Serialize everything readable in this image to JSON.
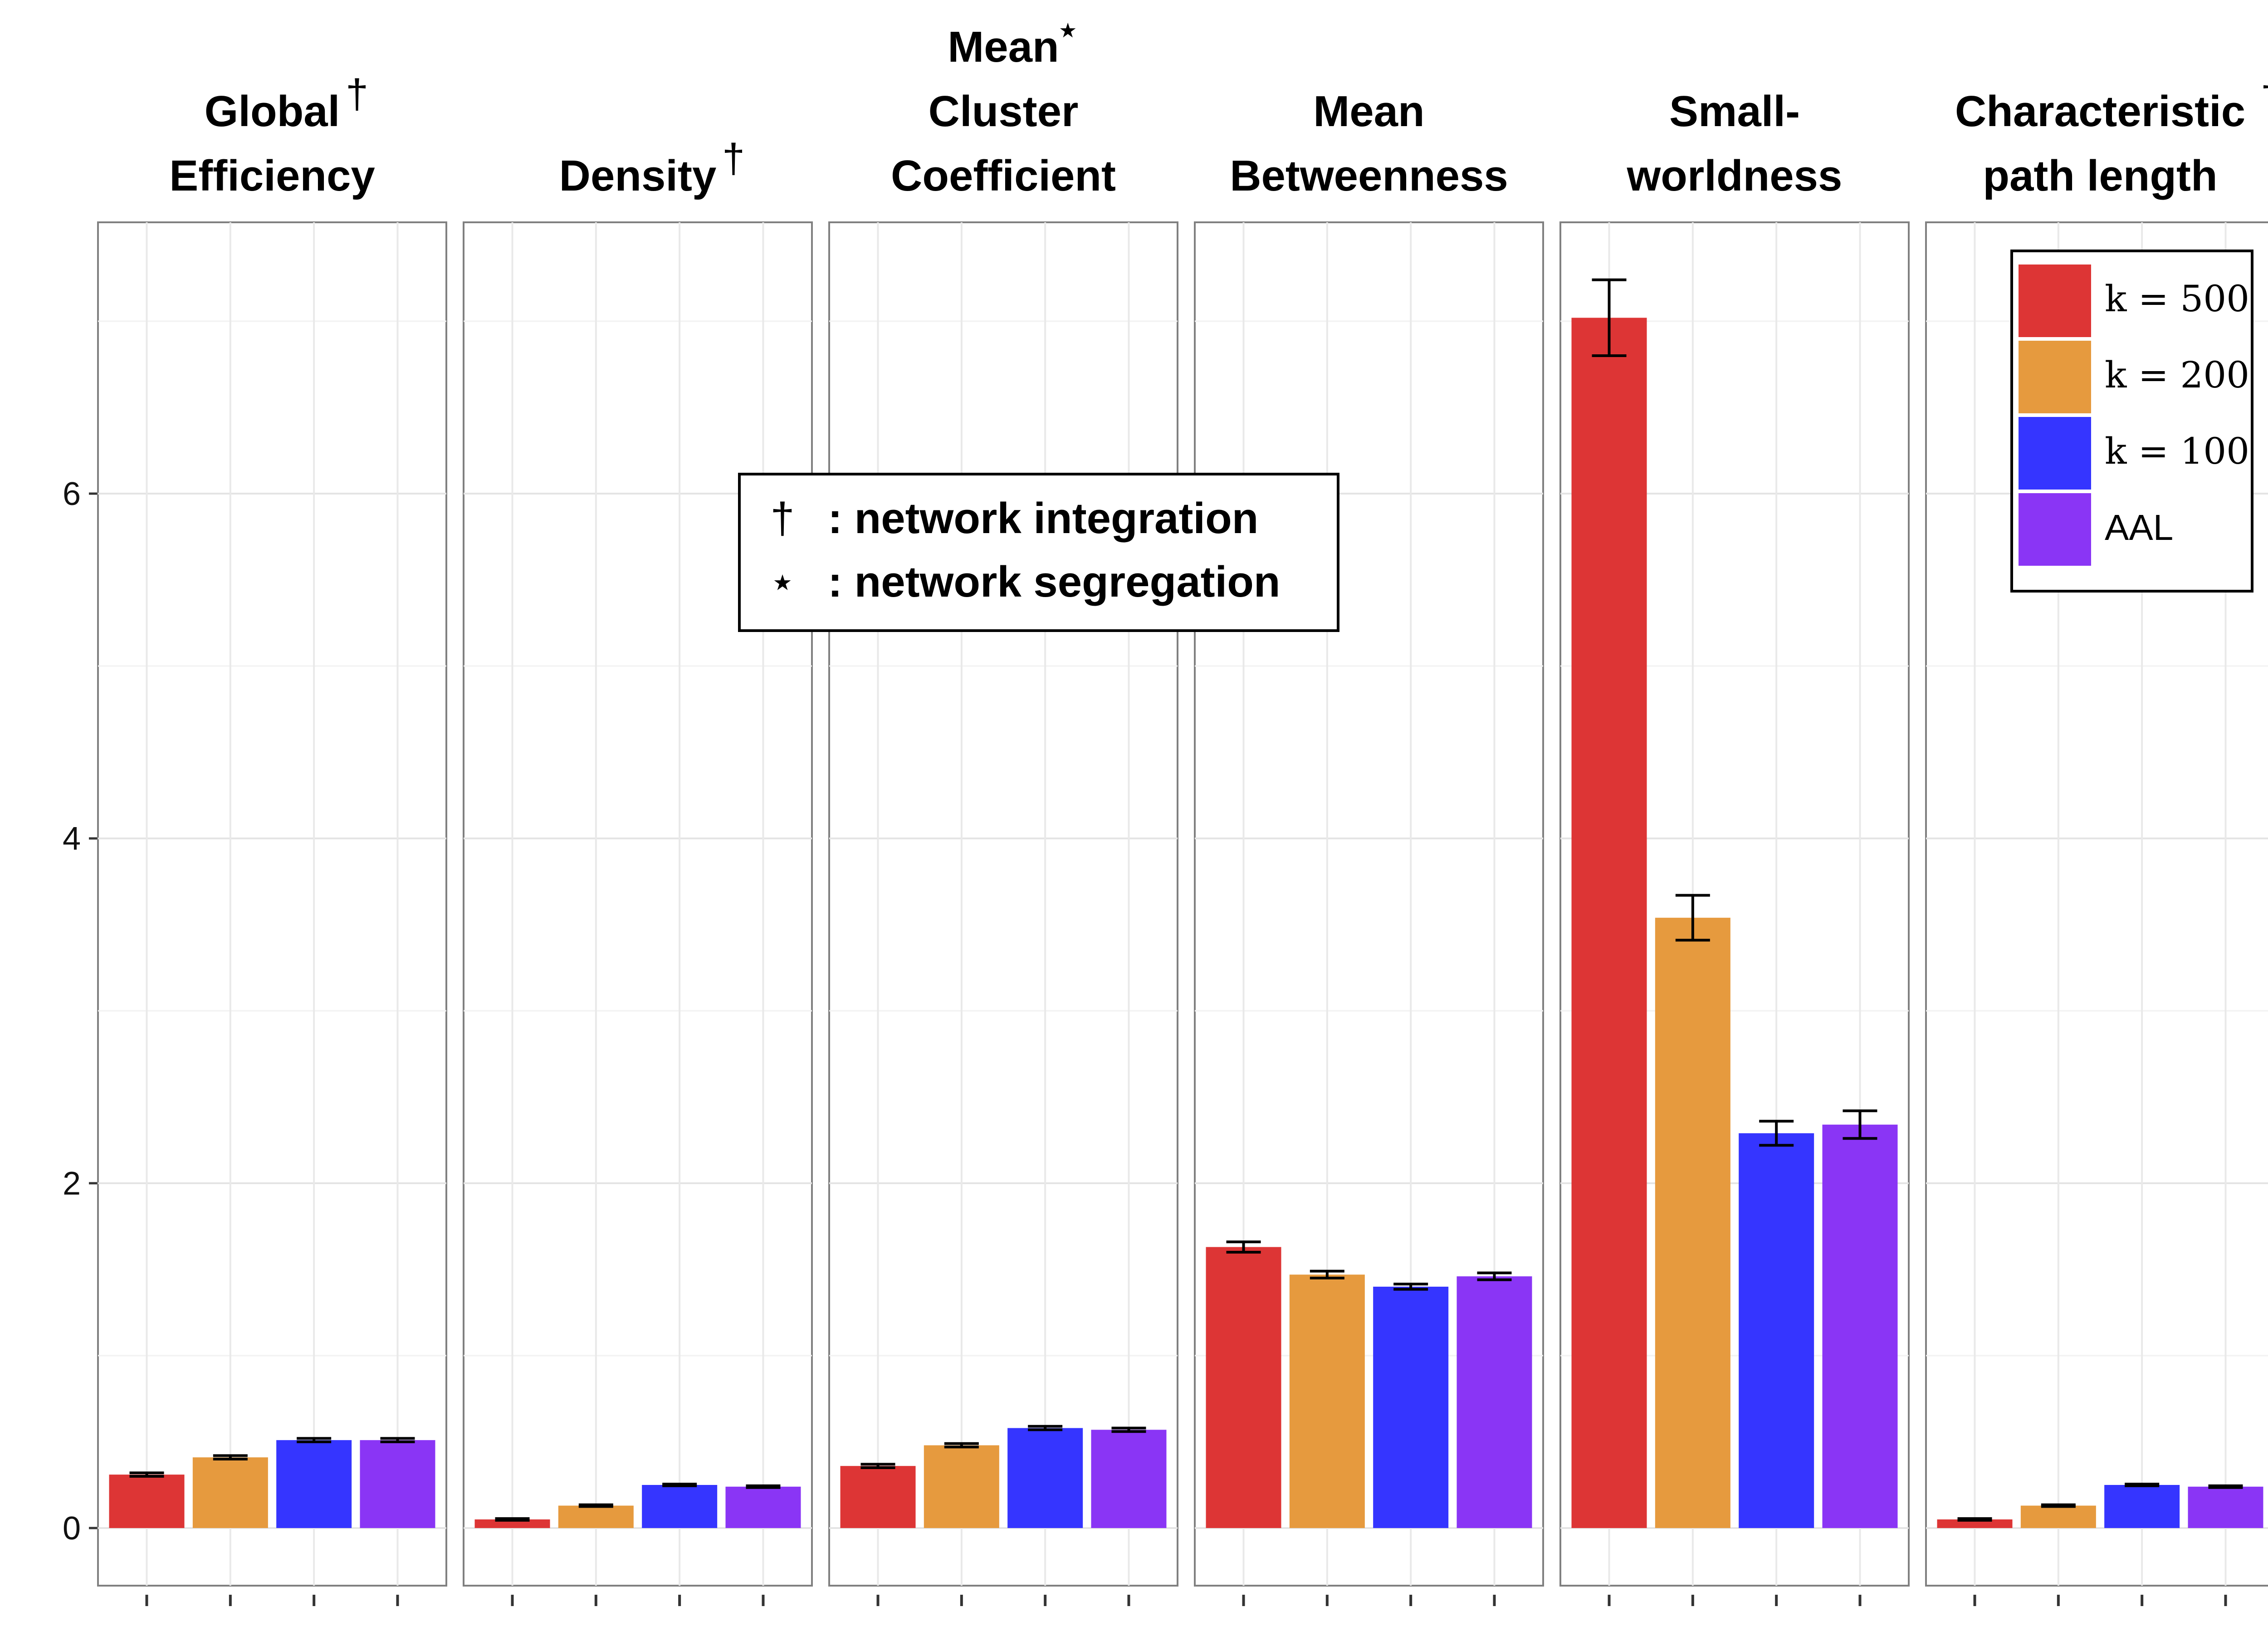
{
  "chart_data": {
    "type": "bar",
    "title": "",
    "xlabel": "",
    "ylabel": "",
    "ylim": [
      -0.3,
      7.6
    ],
    "yticks": [
      0,
      2,
      4,
      6
    ],
    "groups": [
      "k = 500",
      "k = 200",
      "k = 100",
      "AAL"
    ],
    "colors": [
      "#dd3535",
      "#e69a3e",
      "#3535ff",
      "#8a35f5"
    ],
    "facets": [
      {
        "title_lines": [
          "Global",
          "Efficiency"
        ],
        "symbol": "†",
        "values": [
          0.31,
          0.41,
          0.51,
          0.51
        ],
        "errors": [
          0.01,
          0.01,
          0.01,
          0.01
        ]
      },
      {
        "title_lines": [
          "Density"
        ],
        "symbol": "†",
        "values": [
          0.05,
          0.13,
          0.25,
          0.24
        ],
        "errors": [
          0.005,
          0.005,
          0.005,
          0.005
        ]
      },
      {
        "title_lines": [
          "Mean",
          "Cluster",
          "Coefficient"
        ],
        "symbol": "⋆",
        "values": [
          0.36,
          0.48,
          0.58,
          0.57
        ],
        "errors": [
          0.01,
          0.01,
          0.01,
          0.01
        ]
      },
      {
        "title_lines": [
          "Mean",
          "Betweenness"
        ],
        "symbol": "",
        "values": [
          1.63,
          1.47,
          1.4,
          1.46
        ],
        "errors": [
          0.03,
          0.02,
          0.015,
          0.02
        ]
      },
      {
        "title_lines": [
          "Small-",
          "worldness"
        ],
        "symbol": "",
        "values": [
          7.02,
          3.54,
          2.29,
          2.34
        ],
        "errors": [
          0.22,
          0.13,
          0.07,
          0.08
        ]
      },
      {
        "title_lines": [
          "Characteristic",
          "path length"
        ],
        "symbol": "†",
        "values": [
          0.05,
          0.13,
          0.25,
          0.24
        ],
        "errors": [
          0.005,
          0.005,
          0.005,
          0.005
        ]
      }
    ],
    "annotation": {
      "lines": [
        {
          "symbol": "†",
          "text": ": network integration"
        },
        {
          "symbol": "⋆",
          "text": ": network segregation"
        }
      ]
    },
    "legend": {
      "position": "top-right",
      "entries": [
        {
          "label": "k = 500",
          "math": true
        },
        {
          "label": "k = 200",
          "math": true
        },
        {
          "label": "k = 100",
          "math": true
        },
        {
          "label": "AAL",
          "math": false
        }
      ]
    }
  }
}
